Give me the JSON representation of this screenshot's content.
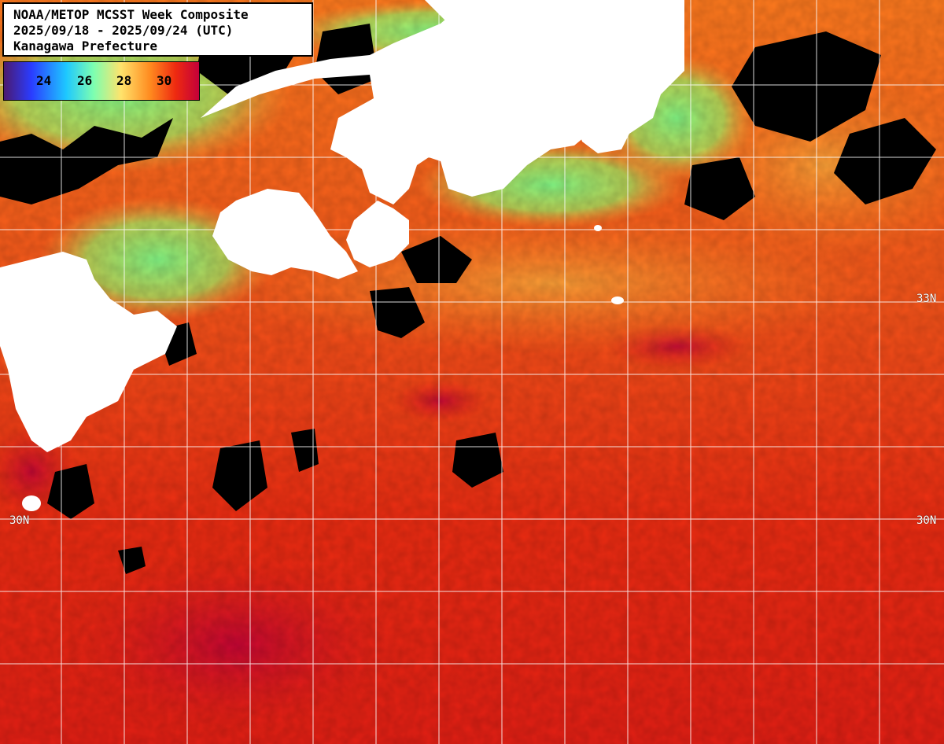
{
  "title": {
    "line1": "NOAA/METOP MCSST Week Composite",
    "line2": "2025/09/18 - 2025/09/24 (UTC)",
    "line3": "Kanagawa Prefecture"
  },
  "colorbar": {
    "ticks": [
      "24",
      "26",
      "28",
      "30"
    ],
    "colors": [
      "#5b1a7a",
      "#2a3cff",
      "#1ec8ff",
      "#7dffb0",
      "#ffe36b",
      "#ff8a1f",
      "#ee2a10",
      "#c4003a"
    ]
  },
  "latitude_labels": {
    "lat33": "33N",
    "lat30": "30N"
  },
  "legend_colors": {
    "land": "#ffffff",
    "no_data": "#000000",
    "grid": "#ffffff"
  }
}
